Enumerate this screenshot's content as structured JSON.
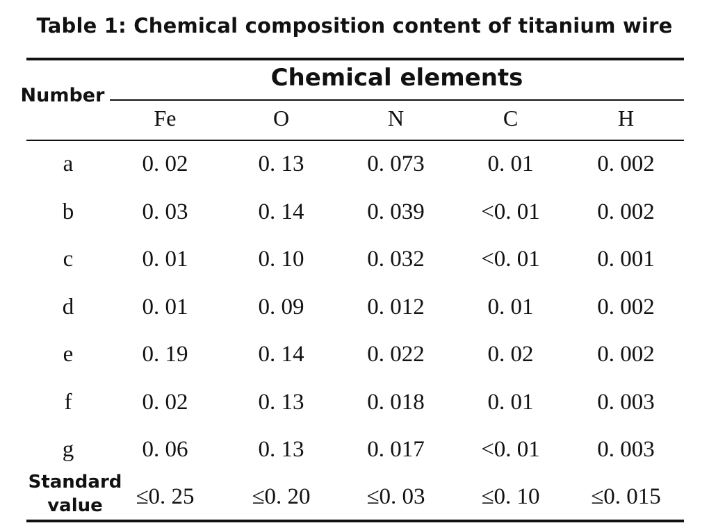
{
  "caption": "Table 1: Chemical composition content of titanium wire",
  "table": {
    "row_header_label": "Number",
    "group_header": "Chemical elements",
    "columns": [
      "Fe",
      "O",
      "N",
      "C",
      "H"
    ],
    "rows": [
      {
        "label": "a",
        "values": [
          "0. 02",
          "0. 13",
          "0. 073",
          "0. 01",
          "0. 002"
        ]
      },
      {
        "label": "b",
        "values": [
          "0. 03",
          "0. 14",
          "0. 039",
          "<0. 01",
          "0. 002"
        ]
      },
      {
        "label": "c",
        "values": [
          "0. 01",
          "0. 10",
          "0. 032",
          "<0. 01",
          "0. 001"
        ]
      },
      {
        "label": "d",
        "values": [
          "0. 01",
          "0. 09",
          "0. 012",
          "0. 01",
          "0. 002"
        ]
      },
      {
        "label": "e",
        "values": [
          "0. 19",
          "0. 14",
          "0. 022",
          "0. 02",
          "0. 002"
        ]
      },
      {
        "label": "f",
        "values": [
          "0. 02",
          "0. 13",
          "0. 018",
          "0. 01",
          "0. 003"
        ]
      },
      {
        "label": "g",
        "values": [
          "0. 06",
          "0. 13",
          "0. 017",
          "<0. 01",
          "0. 003"
        ]
      }
    ],
    "standard": {
      "label_line1": "Standard",
      "label_line2": "value",
      "values": [
        "≤0. 25",
        "≤0. 20",
        "≤0. 03",
        "≤0. 10",
        "≤0. 015"
      ]
    }
  }
}
